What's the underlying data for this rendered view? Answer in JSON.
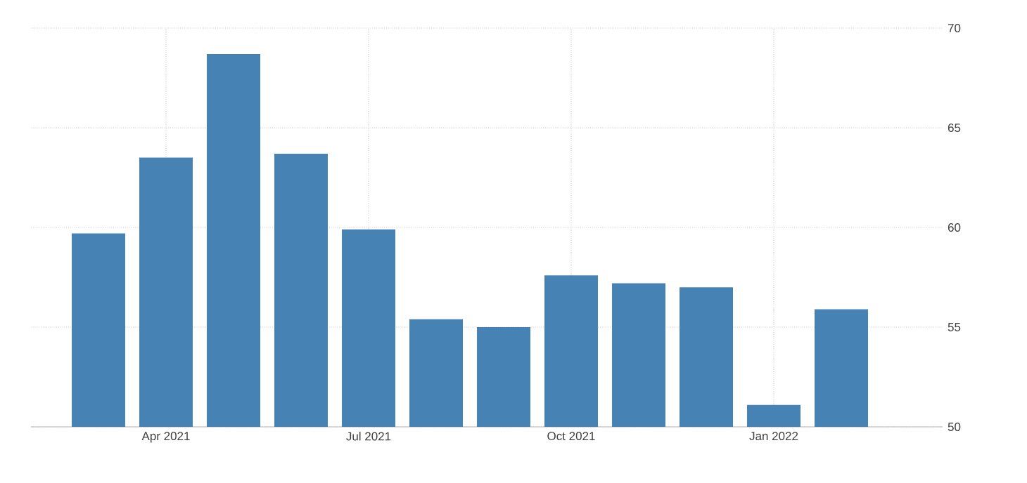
{
  "chart_data": {
    "type": "bar",
    "categories": [
      null,
      "Apr 2021",
      null,
      null,
      "Jul 2021",
      null,
      null,
      "Oct 2021",
      null,
      null,
      "Jan 2022",
      null
    ],
    "values": [
      59.7,
      63.5,
      68.7,
      63.7,
      59.9,
      55.4,
      55.0,
      57.6,
      57.2,
      57.0,
      51.1,
      55.9
    ],
    "color": "#4682b4",
    "ylim": [
      50,
      70
    ],
    "yticks": [
      50,
      55,
      60,
      65,
      70
    ],
    "grid": true
  }
}
